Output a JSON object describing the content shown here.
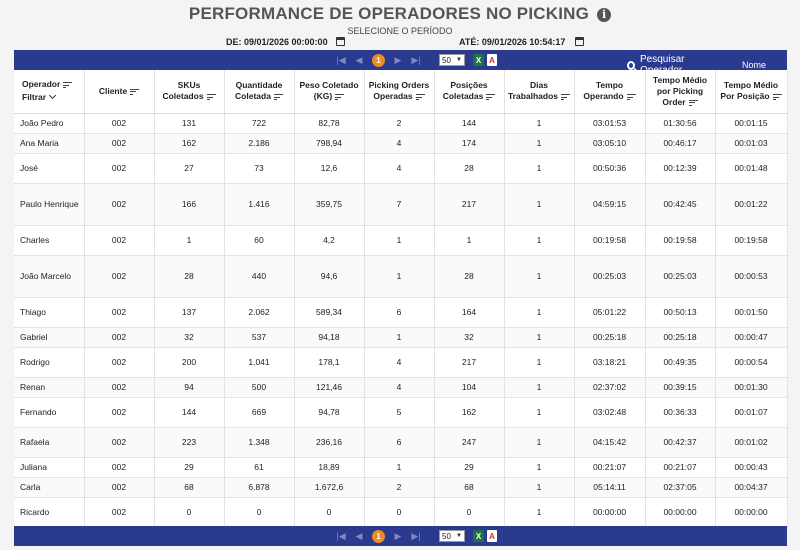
{
  "header": {
    "title": "PERFORMANCE DE OPERADORES NO PICKING",
    "info_glyph": "i",
    "subtitle": "SELECIONE O PERÍODO",
    "date_from": "DE: 09/01/2026 00:00:00",
    "date_to": "ATÉ: 09/01/2026 10:54:17"
  },
  "toolbar": {
    "first_glyph": "|◀",
    "prev_glyph": "◀",
    "next_glyph": "▶",
    "last_glyph": "▶|",
    "current_page": "1",
    "page_size": "50",
    "excel_label": "X",
    "pdf_label": "A",
    "search_label": "Pesquisar Operador",
    "search_placeholder": "Nome"
  },
  "table": {
    "columns": [
      "Operador",
      "Cliente",
      "SKUs Coletados",
      "Quantidade Coletada",
      "Peso Coletado (KG)",
      "Picking Orders Operadas",
      "Posições Coletadas",
      "Dias Trabalhados",
      "Tempo Operando",
      "Tempo Médio por Picking Order",
      "Tempo Médio Por Posição"
    ],
    "filter_label": "Filtrar",
    "rows": [
      [
        "João Pedro",
        "002",
        "131",
        "722",
        "82,78",
        "2",
        "144",
        "1",
        "03:01:53",
        "01:30:56",
        "00:01:15"
      ],
      [
        "Ana Maria",
        "002",
        "162",
        "2.186",
        "798,94",
        "4",
        "174",
        "1",
        "03:05:10",
        "00:46:17",
        "00:01:03"
      ],
      [
        "José",
        "002",
        "27",
        "73",
        "12,6",
        "4",
        "28",
        "1",
        "00:50:36",
        "00:12:39",
        "00:01:48"
      ],
      [
        "Paulo Henrique",
        "002",
        "166",
        "1.416",
        "359,75",
        "7",
        "217",
        "1",
        "04:59:15",
        "00:42:45",
        "00:01:22"
      ],
      [
        "Charles",
        "002",
        "1",
        "60",
        "4,2",
        "1",
        "1",
        "1",
        "00:19:58",
        "00:19:58",
        "00:19:58"
      ],
      [
        "João Marcelo",
        "002",
        "28",
        "440",
        "94,6",
        "1",
        "28",
        "1",
        "00:25:03",
        "00:25:03",
        "00:00:53"
      ],
      [
        "Thiago",
        "002",
        "137",
        "2.062",
        "589,34",
        "6",
        "164",
        "1",
        "05:01:22",
        "00:50:13",
        "00:01:50"
      ],
      [
        "Gabriel",
        "002",
        "32",
        "537",
        "94,18",
        "1",
        "32",
        "1",
        "00:25:18",
        "00:25:18",
        "00:00:47"
      ],
      [
        "Rodrigo",
        "002",
        "200",
        "1.041",
        "178,1",
        "4",
        "217",
        "1",
        "03:18:21",
        "00:49:35",
        "00:00:54"
      ],
      [
        "Renan",
        "002",
        "94",
        "500",
        "121,46",
        "4",
        "104",
        "1",
        "02:37:02",
        "00:39:15",
        "00:01:30"
      ],
      [
        "Fernando",
        "002",
        "144",
        "669",
        "94,78",
        "5",
        "162",
        "1",
        "03:02:48",
        "00:36:33",
        "00:01:07"
      ],
      [
        "Rafaela",
        "002",
        "223",
        "1.348",
        "236,16",
        "6",
        "247",
        "1",
        "04:15:42",
        "00:42:37",
        "00:01:02"
      ],
      [
        "Juliana",
        "002",
        "29",
        "61",
        "18,89",
        "1",
        "29",
        "1",
        "00:21:07",
        "00:21:07",
        "00:00:43"
      ],
      [
        "Carla",
        "002",
        "68",
        "6.878",
        "1.672,6",
        "2",
        "68",
        "1",
        "05:14:11",
        "02:37:05",
        "00:04:37"
      ],
      [
        "Ricardo",
        "002",
        "0",
        "0",
        "0",
        "0",
        "0",
        "1",
        "00:00:00",
        "00:00:00",
        "00:00:00"
      ]
    ]
  }
}
